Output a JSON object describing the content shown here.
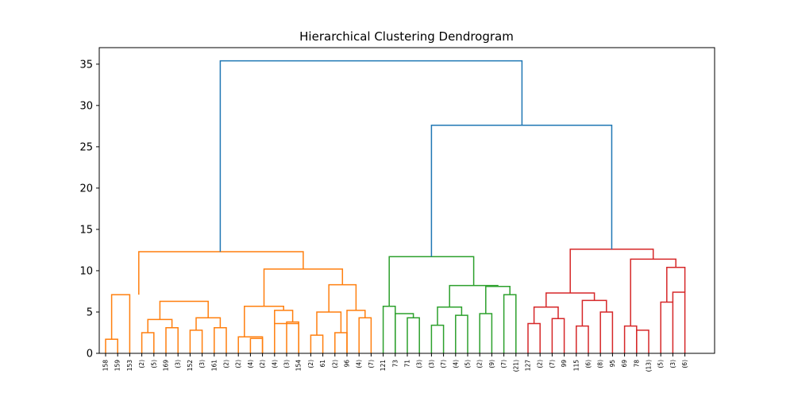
{
  "chart_data": {
    "type": "dendrogram",
    "title": "Hierarchical Clustering Dendrogram",
    "xlabel": "",
    "ylabel": "",
    "ylim": [
      0,
      37
    ],
    "yticks": [
      0,
      5,
      10,
      15,
      20,
      25,
      30,
      35
    ],
    "grid": false,
    "leaf_labels": [
      "158",
      "159",
      "153",
      "(2)",
      "(5)",
      "169",
      "(3)",
      "152",
      "(3)",
      "161",
      "(2)",
      "(2)",
      "(4)",
      "(2)",
      "(4)",
      "(3)",
      "154",
      "(2)",
      "61",
      "(2)",
      "96",
      "(4)",
      "(7)",
      "121",
      "73",
      "71",
      "(3)",
      "(3)",
      "(7)",
      "(4)",
      "(5)",
      "(2)",
      "(9)",
      "(7)",
      "(21)",
      "127",
      "(2)",
      "(7)",
      "99",
      "115",
      "(6)",
      "(8)",
      "95",
      "69",
      "78",
      "(13)",
      "(5)",
      "(3)",
      "(6)"
    ],
    "colors": {
      "cluster_1": "#ff7f0e",
      "cluster_2": "#2ca02c",
      "cluster_3": "#d62728",
      "above_threshold": "#1f77b4"
    },
    "links": [
      {
        "l": 1,
        "lh": 0,
        "r": 2,
        "rh": 0,
        "h": 1.7,
        "c": "cluster_1"
      },
      {
        "l": 4,
        "lh": 0,
        "r": 5,
        "rh": 0,
        "h": 2.5,
        "c": "cluster_1"
      },
      {
        "l": 6,
        "lh": 0,
        "r": 7,
        "rh": 0,
        "h": 3.1,
        "c": "cluster_1"
      },
      {
        "l": 4.5,
        "lh": 2.5,
        "r": 6.5,
        "rh": 3.1,
        "h": 4.1,
        "c": "cluster_1"
      },
      {
        "l": 8,
        "lh": 0,
        "r": 9,
        "rh": 0,
        "h": 2.8,
        "c": "cluster_1"
      },
      {
        "l": 10,
        "lh": 0,
        "r": 11,
        "rh": 0,
        "h": 3.1,
        "c": "cluster_1"
      },
      {
        "l": 8.5,
        "lh": 2.8,
        "r": 10.5,
        "rh": 3.1,
        "h": 4.3,
        "c": "cluster_1"
      },
      {
        "l": 5.5,
        "lh": 4.1,
        "r": 9.5,
        "rh": 4.3,
        "h": 6.3,
        "c": "cluster_1"
      },
      {
        "l": 1.5,
        "lh": 1.7,
        "r": 3,
        "rh": 0,
        "h": 7.1,
        "c": "cluster_1"
      },
      {
        "l": 12,
        "lh": 0,
        "r": 14,
        "rh": 0,
        "h": 2.0,
        "c": "cluster_1"
      },
      {
        "l": 13,
        "lh": 0,
        "r": 14,
        "rh": 0,
        "h": 1.8,
        "c": "cluster_1"
      },
      {
        "l": 15,
        "lh": 0,
        "r": 17,
        "rh": 0,
        "h": 3.6,
        "c": "cluster_1"
      },
      {
        "l": 16,
        "lh": 0,
        "r": 17,
        "rh": 0,
        "h": 3.8,
        "c": "cluster_1"
      },
      {
        "l": 15,
        "lh": 3.6,
        "r": 16.5,
        "rh": 3.8,
        "h": 5.2,
        "c": "cluster_1"
      },
      {
        "l": 12.5,
        "lh": 2.0,
        "r": 15.75,
        "rh": 5.2,
        "h": 5.7,
        "c": "cluster_1"
      },
      {
        "l": 18,
        "lh": 0,
        "r": 19,
        "rh": 0,
        "h": 2.2,
        "c": "cluster_1"
      },
      {
        "l": 20,
        "lh": 0,
        "r": 21,
        "rh": 0,
        "h": 2.5,
        "c": "cluster_1"
      },
      {
        "l": 18.5,
        "lh": 2.2,
        "r": 20.5,
        "rh": 2.5,
        "h": 5.0,
        "c": "cluster_1"
      },
      {
        "l": 22,
        "lh": 0,
        "r": 23,
        "rh": 0,
        "h": 4.3,
        "c": "cluster_1"
      },
      {
        "l": 21,
        "lh": 0,
        "r": 22.5,
        "rh": 4.3,
        "h": 5.2,
        "c": "cluster_1"
      },
      {
        "l": 19.5,
        "lh": 5.0,
        "r": 21.75,
        "rh": 5.2,
        "h": 8.3,
        "c": "cluster_1"
      },
      {
        "l": 14.125,
        "lh": 5.7,
        "r": 20.625,
        "rh": 8.3,
        "h": 10.2,
        "c": "cluster_1"
      },
      {
        "l": 3.75,
        "lh": 7.1,
        "r": 17.375,
        "rh": 10.2,
        "h": 12.3,
        "c": "cluster_1"
      },
      {
        "l": 24,
        "lh": 0,
        "r": 25,
        "rh": 0,
        "h": 5.7,
        "c": "cluster_2"
      },
      {
        "l": 25,
        "lh": 0,
        "r": 26.5,
        "rh": 4.3,
        "h": 4.8,
        "c": "cluster_2"
      },
      {
        "l": 26,
        "lh": 0,
        "r": 27,
        "rh": 0,
        "h": 4.3,
        "c": "cluster_2"
      },
      {
        "l": 28,
        "lh": 0,
        "r": 29,
        "rh": 0,
        "h": 3.4,
        "c": "cluster_2"
      },
      {
        "l": 30,
        "lh": 0,
        "r": 31,
        "rh": 0,
        "h": 4.6,
        "c": "cluster_2"
      },
      {
        "l": 28.5,
        "lh": 3.4,
        "r": 30.5,
        "rh": 4.6,
        "h": 5.6,
        "c": "cluster_2"
      },
      {
        "l": 32,
        "lh": 0,
        "r": 33,
        "rh": 0,
        "h": 4.8,
        "c": "cluster_2"
      },
      {
        "l": 34,
        "lh": 0,
        "r": 35,
        "rh": 0,
        "h": 7.1,
        "c": "cluster_2"
      },
      {
        "l": 32.5,
        "lh": 4.8,
        "r": 34.5,
        "rh": 7.1,
        "h": 8.1,
        "c": "cluster_2"
      },
      {
        "l": 29.5,
        "lh": 5.6,
        "r": 33.5,
        "rh": 8.1,
        "h": 8.2,
        "c": "cluster_2"
      },
      {
        "l": 24.5,
        "lh": 5.7,
        "r": 31.5,
        "rh": 8.2,
        "h": 11.7,
        "c": "cluster_2"
      },
      {
        "l": 36,
        "lh": 0,
        "r": 37,
        "rh": 0,
        "h": 3.6,
        "c": "cluster_3"
      },
      {
        "l": 38,
        "lh": 0,
        "r": 39,
        "rh": 0,
        "h": 4.2,
        "c": "cluster_3"
      },
      {
        "l": 36.5,
        "lh": 3.6,
        "r": 38.5,
        "rh": 4.2,
        "h": 5.6,
        "c": "cluster_3"
      },
      {
        "l": 40,
        "lh": 0,
        "r": 41,
        "rh": 0,
        "h": 3.3,
        "c": "cluster_3"
      },
      {
        "l": 42,
        "lh": 0,
        "r": 43,
        "rh": 0,
        "h": 5.0,
        "c": "cluster_3"
      },
      {
        "l": 40.5,
        "lh": 3.3,
        "r": 42.5,
        "rh": 5.0,
        "h": 6.4,
        "c": "cluster_3"
      },
      {
        "l": 37.5,
        "lh": 5.6,
        "r": 41.5,
        "rh": 6.4,
        "h": 7.3,
        "c": "cluster_3"
      },
      {
        "l": 44,
        "lh": 0,
        "r": 45,
        "rh": 0,
        "h": 3.3,
        "c": "cluster_3"
      },
      {
        "l": 45,
        "lh": 0,
        "r": 46,
        "rh": 0,
        "h": 2.8,
        "c": "cluster_3"
      },
      {
        "l": 47,
        "lh": 0,
        "r": 48,
        "rh": 0,
        "h": 6.2,
        "c": "cluster_3"
      },
      {
        "l": 48,
        "lh": 6.2,
        "r": 49,
        "rh": 0,
        "h": 7.4,
        "c": "cluster_3"
      },
      {
        "l": 47.5,
        "lh": 6.2,
        "r": 49,
        "rh": 7.4,
        "h": 10.4,
        "c": "cluster_3"
      },
      {
        "l": 44.5,
        "lh": 3.3,
        "r": 48.25,
        "rh": 10.4,
        "h": 11.4,
        "c": "cluster_3"
      },
      {
        "l": 39.5,
        "lh": 7.3,
        "r": 46.375,
        "rh": 11.4,
        "h": 12.6,
        "c": "cluster_3"
      },
      {
        "l": 28,
        "lh": 11.7,
        "r": 42.9375,
        "rh": 12.6,
        "h": 27.6,
        "c": "above_threshold"
      },
      {
        "l": 10.5,
        "lh": 12.3,
        "r": 35.5,
        "rh": 27.6,
        "h": 35.4,
        "c": "above_threshold"
      }
    ]
  }
}
